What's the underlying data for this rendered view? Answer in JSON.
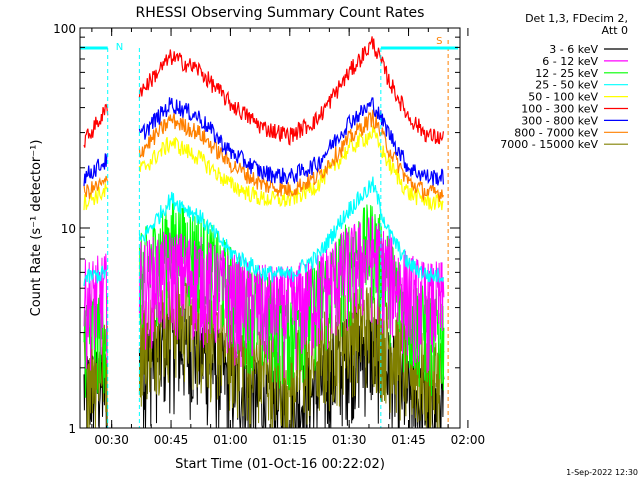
{
  "chart_data": {
    "type": "line",
    "title": "RHESSI Observing Summary Count Rates",
    "xlabel": "Start Time (01-Oct-16 00:22:02)",
    "ylabel": "Count Rate (s⁻¹ detector⁻¹)",
    "yscale": "log",
    "ylim": [
      1,
      100
    ],
    "x_range": [
      "00:22",
      "01:58"
    ],
    "x_ticks": [
      "00:30",
      "00:45",
      "01:00",
      "01:15",
      "01:30",
      "01:45",
      "02:00"
    ],
    "y_ticks": [
      "1",
      "10",
      "100"
    ],
    "legend_header": [
      "Det 1,3, FDecim 2,",
      "Att 0"
    ],
    "legend_position": "right",
    "grid": false,
    "timestamp": "1-Sep-2022 12:30",
    "flag_bar_labels": [
      {
        "text": "N",
        "color": "#00ffff"
      },
      {
        "text": "S",
        "color": "#ff8000"
      }
    ],
    "data_gap": [
      "00:29",
      "00:37"
    ],
    "series": [
      {
        "name": "3 - 6 keV",
        "color": "#000000",
        "x": [
          "00:23",
          "00:29",
          "00:38",
          "00:45",
          "00:52",
          "01:00",
          "01:08",
          "01:15",
          "01:22",
          "01:30",
          "01:36",
          "01:40",
          "01:45",
          "01:50",
          "01:54"
        ],
        "y": [
          1.5,
          1.6,
          2.0,
          2.6,
          2.3,
          1.7,
          1.3,
          1.2,
          1.5,
          2.3,
          2.4,
          1.9,
          1.4,
          1.2,
          1.2
        ]
      },
      {
        "name": "6 - 12 keV",
        "color": "#ff00ff",
        "x": [
          "00:23",
          "00:29",
          "00:38",
          "00:45",
          "00:52",
          "01:00",
          "01:08",
          "01:15",
          "01:22",
          "01:30",
          "01:36",
          "01:40",
          "01:45",
          "01:50",
          "01:54"
        ],
        "y": [
          4.2,
          4.6,
          5.3,
          6.0,
          5.6,
          4.6,
          4.0,
          3.9,
          4.6,
          6.3,
          7.2,
          5.8,
          4.6,
          4.1,
          4.2
        ]
      },
      {
        "name": "12 - 25 keV",
        "color": "#00ff00",
        "x": [
          "00:23",
          "00:29",
          "00:38",
          "00:45",
          "00:52",
          "01:00",
          "01:08",
          "01:15",
          "01:22",
          "01:30",
          "01:36",
          "01:40",
          "01:45",
          "01:50",
          "01:54"
        ],
        "y": [
          3.0,
          3.2,
          6.0,
          8.5,
          7.5,
          5.0,
          3.6,
          3.2,
          4.2,
          6.8,
          8.4,
          5.8,
          3.6,
          3.0,
          3.0
        ]
      },
      {
        "name": "25 - 50 keV",
        "color": "#00ffff",
        "x": [
          "00:23",
          "00:29",
          "00:38",
          "00:45",
          "00:52",
          "01:00",
          "01:08",
          "01:15",
          "01:22",
          "01:30",
          "01:36",
          "01:40",
          "01:45",
          "01:50",
          "01:54"
        ],
        "y": [
          5.6,
          6.0,
          9.0,
          14.0,
          11.5,
          7.6,
          6.0,
          5.8,
          7.2,
          12.5,
          16.5,
          9.5,
          6.6,
          5.8,
          5.8
        ]
      },
      {
        "name": "50 - 100 keV",
        "color": "#ffff00",
        "x": [
          "00:23",
          "00:29",
          "00:38",
          "00:45",
          "00:52",
          "01:00",
          "01:08",
          "01:15",
          "01:22",
          "01:30",
          "01:36",
          "01:40",
          "01:45",
          "01:50",
          "01:54"
        ],
        "y": [
          13.5,
          15.5,
          20.0,
          27.0,
          22.5,
          16.5,
          14.0,
          13.8,
          16.5,
          25.0,
          30.0,
          21.0,
          15.0,
          13.5,
          13.5
        ]
      },
      {
        "name": "100 - 300 keV",
        "color": "#ff0000",
        "x": [
          "00:23",
          "00:29",
          "00:38",
          "00:45",
          "00:52",
          "01:00",
          "01:08",
          "01:15",
          "01:22",
          "01:30",
          "01:36",
          "01:40",
          "01:45",
          "01:50",
          "01:54"
        ],
        "y": [
          27.0,
          40.0,
          50.0,
          72.0,
          62.0,
          42.0,
          32.0,
          29.0,
          35.0,
          60.0,
          85.0,
          55.0,
          36.0,
          29.0,
          28.0
        ]
      },
      {
        "name": "300 - 800 keV",
        "color": "#0000ff",
        "x": [
          "00:23",
          "00:29",
          "00:38",
          "00:45",
          "00:52",
          "01:00",
          "01:08",
          "01:15",
          "01:22",
          "01:30",
          "01:36",
          "01:40",
          "01:45",
          "01:50",
          "01:54"
        ],
        "y": [
          18.0,
          22.0,
          30.0,
          42.0,
          36.0,
          24.0,
          19.0,
          18.0,
          21.0,
          34.0,
          42.0,
          30.0,
          20.0,
          18.0,
          18.0
        ]
      },
      {
        "name": "800 - 7000 keV",
        "color": "#ff8000",
        "x": [
          "00:23",
          "00:29",
          "00:38",
          "00:45",
          "00:52",
          "01:00",
          "01:08",
          "01:15",
          "01:22",
          "01:30",
          "01:36",
          "01:40",
          "01:45",
          "01:50",
          "01:54"
        ],
        "y": [
          15.0,
          17.0,
          25.0,
          35.0,
          30.0,
          21.0,
          16.5,
          15.5,
          18.0,
          28.0,
          36.0,
          25.0,
          17.0,
          15.0,
          15.0
        ]
      },
      {
        "name": "7000 - 15000 keV",
        "color": "#808000",
        "x": [
          "00:23",
          "00:29",
          "00:38",
          "00:45",
          "00:52",
          "01:00",
          "01:08",
          "01:15",
          "01:22",
          "01:30",
          "01:36",
          "01:40",
          "01:45",
          "01:50",
          "01:54"
        ],
        "y": [
          2.0,
          2.1,
          2.8,
          3.6,
          3.2,
          2.4,
          1.9,
          1.8,
          2.2,
          3.1,
          3.3,
          2.6,
          2.0,
          1.8,
          1.8
        ]
      }
    ]
  }
}
